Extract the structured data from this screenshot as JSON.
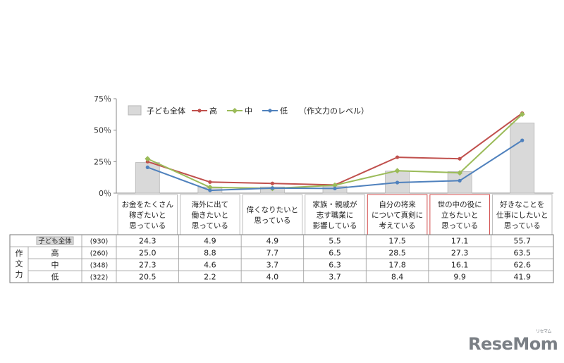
{
  "chart_data": {
    "type": "bar",
    "yticks": [
      "75％",
      "50％",
      "25％",
      "0％"
    ],
    "ylim": [
      0,
      75
    ],
    "categories": [
      [
        "お金をたくさん",
        "稼ぎたいと",
        "思っている"
      ],
      [
        "海外に出て",
        "働きたいと",
        "思っている"
      ],
      [
        "偉くなりたいと",
        "思っている"
      ],
      [
        "家族・親戚が",
        "志す職業に",
        "影響している"
      ],
      [
        "自分の将来",
        "について真剣に",
        "考えている"
      ],
      [
        "世の中の役に",
        "立ちたいと",
        "思っている"
      ],
      [
        "好きなことを",
        "仕事にしたいと",
        "思っている"
      ]
    ],
    "highlight_categories": [
      4,
      5
    ],
    "bar_series": {
      "name": "子ども全体",
      "n": "(930)",
      "color": "#d9d9d9",
      "values": [
        24.3,
        4.9,
        4.9,
        5.5,
        17.5,
        17.1,
        55.7
      ]
    },
    "line_series": [
      {
        "name": "高",
        "n": "(260)",
        "color": "#c0504d",
        "values": [
          25.0,
          8.8,
          7.7,
          6.5,
          28.5,
          27.3,
          63.5
        ]
      },
      {
        "name": "中",
        "n": "(348)",
        "color": "#9bbb59",
        "values": [
          27.3,
          4.6,
          3.7,
          6.3,
          17.8,
          16.1,
          62.6
        ]
      },
      {
        "name": "低",
        "n": "(322)",
        "color": "#4f81bd",
        "values": [
          20.5,
          2.2,
          4.0,
          3.7,
          8.4,
          9.9,
          41.9
        ]
      }
    ],
    "legend_note": "（作文力のレベル）",
    "legend_position": "top",
    "table": {
      "group_label": "作文力",
      "rows": [
        {
          "label": "子ども全体",
          "n": "(930)",
          "values": [
            "24.3",
            "4.9",
            "4.9",
            "5.5",
            "17.5",
            "17.1",
            "55.7"
          ]
        },
        {
          "label": "高",
          "n": "(260)",
          "values": [
            "25.0",
            "8.8",
            "7.7",
            "6.5",
            "28.5",
            "27.3",
            "63.5"
          ]
        },
        {
          "label": "中",
          "n": "(348)",
          "values": [
            "27.3",
            "4.6",
            "3.7",
            "6.3",
            "17.8",
            "16.1",
            "62.6"
          ]
        },
        {
          "label": "低",
          "n": "(322)",
          "values": [
            "20.5",
            "2.2",
            "4.0",
            "3.7",
            "8.4",
            "9.9",
            "41.9"
          ]
        }
      ]
    }
  },
  "brand": {
    "logo_text": "ReseMom",
    "logo_ruby": "リセマム"
  }
}
